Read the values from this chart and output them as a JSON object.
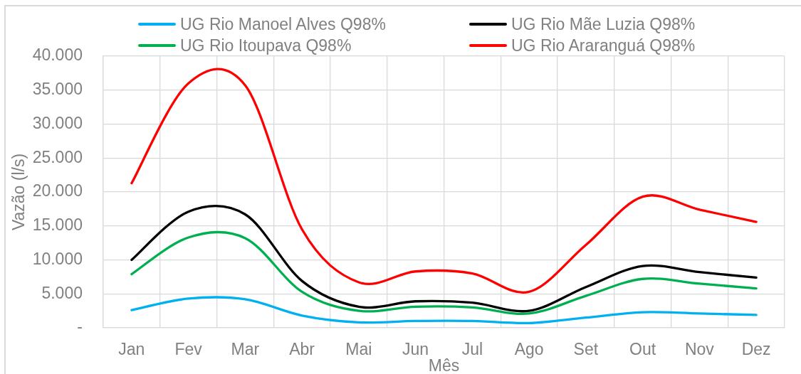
{
  "chart_data": {
    "type": "line",
    "xlabel": "Mês",
    "ylabel": "Vazão (l/s)",
    "categories": [
      "Jan",
      "Fev",
      "Mar",
      "Abr",
      "Mai",
      "Jun",
      "Jul",
      "Ago",
      "Set",
      "Out",
      "Nov",
      "Dez"
    ],
    "series": [
      {
        "name": "UG Rio Manoel Alves Q98%",
        "color": "#00b0f0",
        "values": [
          2600,
          4300,
          4200,
          1800,
          800,
          1000,
          1000,
          700,
          1500,
          2300,
          2100,
          1900
        ]
      },
      {
        "name": "UG Rio Mãe Luzia Q98%",
        "color": "#000000",
        "values": [
          10000,
          17100,
          16700,
          6900,
          3100,
          3900,
          3700,
          2500,
          6000,
          9100,
          8200,
          7400
        ]
      },
      {
        "name": "UG Rio Itoupava Q98%",
        "color": "#00b050",
        "values": [
          7900,
          13300,
          13200,
          5300,
          2500,
          3100,
          3000,
          2100,
          4700,
          7200,
          6500,
          5800
        ]
      },
      {
        "name": "UG Rio Araranguá Q98%",
        "color": "#ff0000",
        "values": [
          21300,
          36000,
          35700,
          14500,
          6700,
          8300,
          8000,
          5300,
          12200,
          19300,
          17400,
          15600
        ]
      }
    ],
    "ylim": [
      0,
      40000
    ],
    "yticks": [
      {
        "value": 0,
        "label": "-"
      },
      {
        "value": 5000,
        "label": "5.000"
      },
      {
        "value": 10000,
        "label": "10.000"
      },
      {
        "value": 15000,
        "label": "15.000"
      },
      {
        "value": 20000,
        "label": "20.000"
      },
      {
        "value": 25000,
        "label": "25.000"
      },
      {
        "value": 30000,
        "label": "30.000"
      },
      {
        "value": 35000,
        "label": "35.000"
      },
      {
        "value": 40000,
        "label": "40.000"
      }
    ],
    "grid": true,
    "legend": "top",
    "marker": "none"
  }
}
